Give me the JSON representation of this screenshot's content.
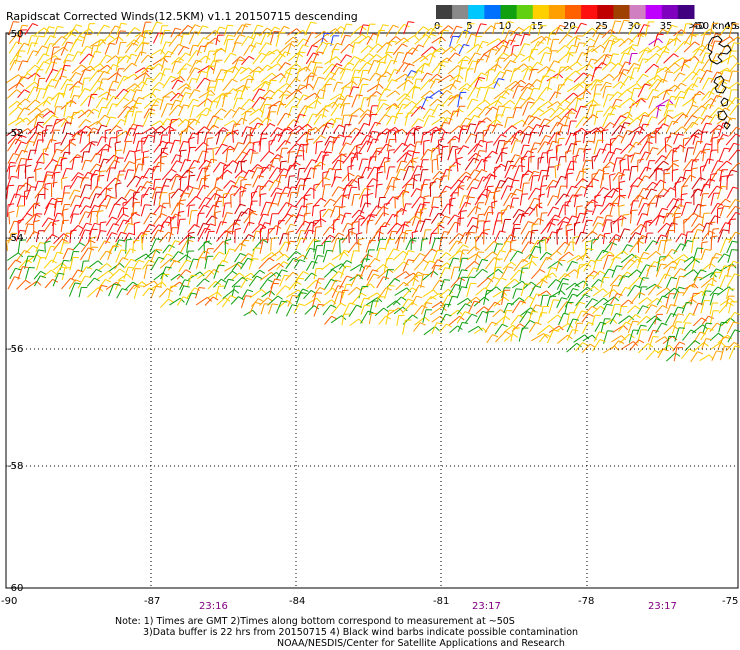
{
  "title": "Rapidscat Corrected Winds(12.5KM) v1.1 20150715 descending",
  "legend": {
    "unit_label": ">50 knots",
    "tick_labels": [
      "0",
      "5",
      "10",
      "15",
      "20",
      "25",
      "30",
      "35",
      "40",
      "45"
    ],
    "colors": [
      "#404040",
      "#8a8a8a",
      "#00c8ff",
      "#0070ff",
      "#10a010",
      "#60d010",
      "#ffd000",
      "#ffa000",
      "#ff6000",
      "#ff1010",
      "#c00000",
      "#a04000",
      "#d080c0",
      "#c000ff",
      "#8000c0",
      "#400080"
    ]
  },
  "map": {
    "lon_min": -90,
    "lon_max": -75,
    "lat_top": -50,
    "lat_bottom": -60,
    "lat_labels": [
      "-50",
      "-52",
      "-54",
      "-56",
      "-58",
      "-60"
    ],
    "lon_labels": [
      "-90",
      "-87",
      "-84",
      "-81",
      "-78",
      "-75"
    ],
    "time_labels": [
      "23:16",
      "23:17",
      "23:17"
    ],
    "wind_color_scale": [
      "#10a010",
      "#ffd000",
      "#ffa000",
      "#ff6000",
      "#ff1010",
      "#d00000"
    ],
    "accent_colors": {
      "blue": "#2040ff",
      "magenta": "#c000c0",
      "time_label": "#800080"
    }
  },
  "notes": {
    "line1": "Note: 1) Times are GMT 2)Times along bottom correspond to measurement at ~50S",
    "line2": "3)Data buffer is 22 hrs from 20150715 4) Black wind barbs indicate possible contamination",
    "line3": "NOAA/NESDIS/Center for Satellite Applications and Research"
  }
}
